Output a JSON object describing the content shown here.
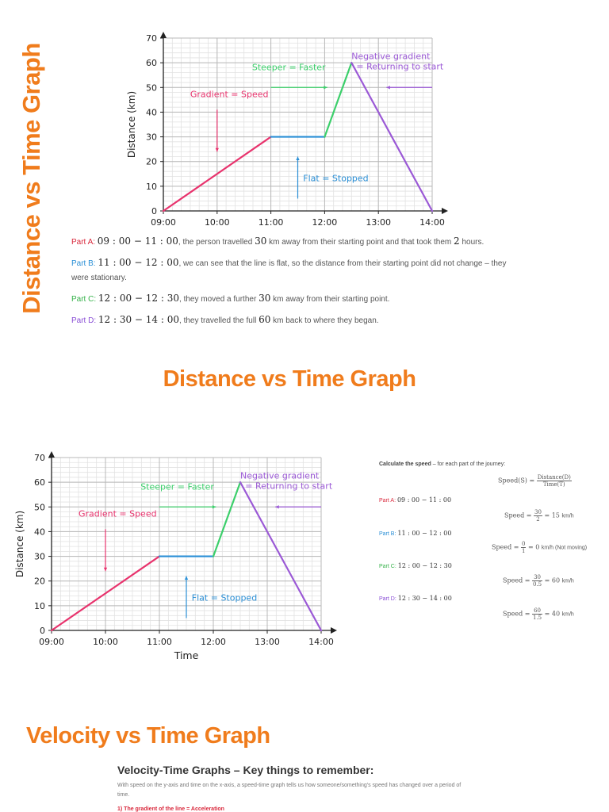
{
  "section1": {
    "vertical_title": "Distance vs Time Graph",
    "parts": [
      {
        "label": "Part A:",
        "range": "09 : 00 − 11 : 00",
        "text_pre": ", the person travelled ",
        "num1": "30",
        "text_mid": " km away from their starting point and that took them ",
        "num2": "2",
        "text_post": " hours.",
        "color": "#d9283c"
      },
      {
        "label": "Part B:",
        "range": "11 : 00 − 12 : 00",
        "text_pre": ", we can see that the line is flat, so the distance from their starting point did not change – they",
        "text_line2": "were stationary.",
        "color": "#2a8fd6"
      },
      {
        "label": "Part C:",
        "range": "12 : 00 − 12 : 30",
        "text_pre": ", they moved a further ",
        "num1": "30",
        "text_post": " km away from their starting point.",
        "color": "#36b24a"
      },
      {
        "label": "Part D:",
        "range": "12 : 30 − 14 : 00",
        "text_pre": ", they travelled the full ",
        "num1": "60",
        "text_post": " km back to where they began.",
        "color": "#8a4fd6"
      }
    ]
  },
  "section2": {
    "heading": "Distance vs Time Graph",
    "speed_intro_bold": "Calculate the speed",
    "speed_intro_rest": " – for each part of the journey:",
    "formula_lhs": "Speed(S) =",
    "formula_num": "Distance(D)",
    "formula_den": "Time(T)",
    "parts": [
      {
        "label": "Part A:",
        "range": "09 : 00 − 11 : 00",
        "color": "#d9283c",
        "num": "30",
        "den": "2",
        "result": "= 15",
        "unit": "km/h"
      },
      {
        "label": "Part B:",
        "range": "11 : 00 − 12 : 00",
        "color": "#2a8fd6",
        "num": "0",
        "den": "1",
        "result": "= 0",
        "unit": "km/h (Not moving)"
      },
      {
        "label": "Part C:",
        "range": "12 : 00 − 12 : 30",
        "color": "#36b24a",
        "num": "30",
        "den": "0.5",
        "result": "= 60",
        "unit": "km/h"
      },
      {
        "label": "Part D:",
        "range": "12 : 30 − 14 : 00",
        "color": "#8a4fd6",
        "num": "60",
        "den": "1.5",
        "result": "= 40",
        "unit": "km/h"
      }
    ],
    "speed_word": "Speed ="
  },
  "section3": {
    "heading": "Velocity vs Time Graph",
    "key_title": "Velocity-Time Graphs – Key things to remember:",
    "key_text": "With speed on the y-axis and time on the x-axis, a speed-time graph tells us how someone/something's speed has changed over a period of time.",
    "key_sub": "1) The gradient of the line = Acceleration"
  },
  "chart_data": [
    {
      "type": "line",
      "x_labels": [
        "09:00",
        "10:00",
        "11:00",
        "12:00",
        "13:00",
        "14:00"
      ],
      "xlim": [
        "09:00",
        "14:00"
      ],
      "ylabel": "Distance (km)",
      "xlabel": "",
      "ylim": [
        0,
        70
      ],
      "yticks": [
        0,
        10,
        20,
        30,
        40,
        50,
        60,
        70
      ],
      "grid": true,
      "series": [
        {
          "points": [
            [
              "09:00",
              0
            ],
            [
              "11:00",
              30
            ]
          ],
          "color": "#e8336d"
        },
        {
          "points": [
            [
              "11:00",
              30
            ],
            [
              "12:00",
              30
            ]
          ],
          "color": "#2a8fd6"
        },
        {
          "points": [
            [
              "12:00",
              30
            ],
            [
              "12:30",
              60
            ]
          ],
          "color": "#3ccf6b"
        },
        {
          "points": [
            [
              "12:30",
              60
            ],
            [
              "14:00",
              0
            ]
          ],
          "color": "#9b59d6"
        }
      ],
      "annotations": [
        {
          "text": "Gradient = Speed",
          "color": "#e8336d"
        },
        {
          "text": "Steeper = Faster",
          "color": "#3ccf6b"
        },
        {
          "text": "Negative gradient",
          "color": "#9b59d6"
        },
        {
          "text": "= Returning to start",
          "color": "#9b59d6"
        },
        {
          "text": "Flat = Stopped",
          "color": "#2a8fd6"
        }
      ]
    },
    {
      "type": "line",
      "x_labels": [
        "09:00",
        "10:00",
        "11:00",
        "12:00",
        "13:00",
        "14:00"
      ],
      "xlim": [
        "09:00",
        "14:00"
      ],
      "ylabel": "Distance (km)",
      "xlabel": "Time",
      "ylim": [
        0,
        70
      ],
      "yticks": [
        0,
        10,
        20,
        30,
        40,
        50,
        60,
        70
      ],
      "grid": true,
      "series": [
        {
          "points": [
            [
              "09:00",
              0
            ],
            [
              "11:00",
              30
            ]
          ],
          "color": "#e8336d"
        },
        {
          "points": [
            [
              "11:00",
              30
            ],
            [
              "12:00",
              30
            ]
          ],
          "color": "#2a8fd6"
        },
        {
          "points": [
            [
              "12:00",
              30
            ],
            [
              "12:30",
              60
            ]
          ],
          "color": "#3ccf6b"
        },
        {
          "points": [
            [
              "12:30",
              60
            ],
            [
              "14:00",
              0
            ]
          ],
          "color": "#9b59d6"
        }
      ],
      "annotations": [
        {
          "text": "Gradient = Speed",
          "color": "#e8336d"
        },
        {
          "text": "Steeper = Faster",
          "color": "#3ccf6b"
        },
        {
          "text": "Negative gradient",
          "color": "#9b59d6"
        },
        {
          "text": "= Returning to start",
          "color": "#9b59d6"
        },
        {
          "text": "Flat = Stopped",
          "color": "#2a8fd6"
        }
      ]
    }
  ]
}
